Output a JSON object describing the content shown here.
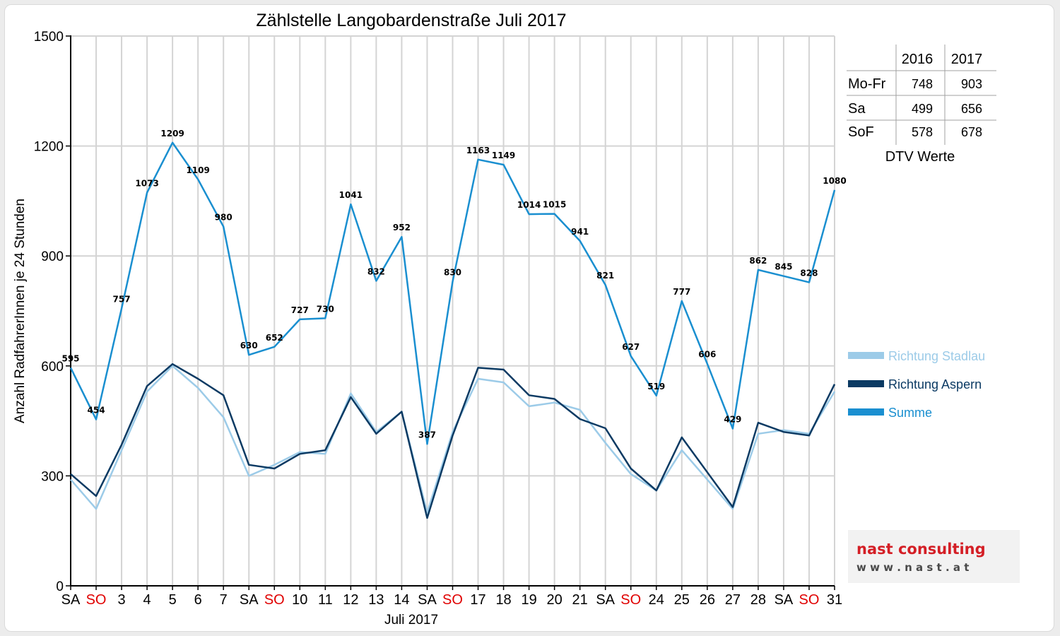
{
  "chart_data": {
    "type": "line",
    "title": "Zählstelle Langobardenstraße Juli 2017",
    "xlabel": "Juli 2017",
    "ylabel": "Anzahl RadfahrerInnen je 24 Stunden",
    "ylim": [
      0,
      1500
    ],
    "yticks": [
      0,
      300,
      600,
      900,
      1200,
      1500
    ],
    "grid": true,
    "legend_position": "right",
    "categories": [
      "SA",
      "SO",
      "3",
      "4",
      "5",
      "6",
      "7",
      "SA",
      "SO",
      "10",
      "11",
      "12",
      "13",
      "14",
      "SA",
      "SO",
      "17",
      "18",
      "19",
      "20",
      "21",
      "SA",
      "SO",
      "24",
      "25",
      "26",
      "27",
      "28",
      "SA",
      "SO",
      "31"
    ],
    "weekend_categories": [
      1,
      8,
      15,
      22,
      29
    ],
    "series": [
      {
        "name": "Richtung Stadlau",
        "color": "#9ccbe8",
        "values": [
          290,
          210,
          370,
          530,
          600,
          540,
          460,
          300,
          330,
          365,
          360,
          525,
          420,
          475,
          200,
          420,
          565,
          555,
          490,
          500,
          480,
          390,
          305,
          260,
          370,
          290,
          210,
          415,
          425,
          415,
          530
        ]
      },
      {
        "name": "Richtung Aspern",
        "color": "#0b3a63",
        "values": [
          305,
          245,
          385,
          545,
          605,
          565,
          520,
          330,
          320,
          360,
          370,
          515,
          415,
          475,
          185,
          410,
          595,
          590,
          520,
          510,
          455,
          430,
          320,
          260,
          405,
          310,
          215,
          445,
          420,
          410,
          550
        ]
      },
      {
        "name": "Summe",
        "color": "#1a8fd0",
        "values": [
          595,
          454,
          757,
          1073,
          1209,
          1109,
          980,
          630,
          652,
          727,
          730,
          1041,
          832,
          952,
          387,
          830,
          1163,
          1149,
          1014,
          1015,
          941,
          821,
          627,
          519,
          777,
          606,
          429,
          862,
          845,
          828,
          1080
        ]
      }
    ]
  },
  "dtv_table": {
    "columns": [
      "2016",
      "2017"
    ],
    "rows": [
      {
        "label": "Mo-Fr",
        "v2016": "748",
        "v2017": "903"
      },
      {
        "label": "Sa",
        "v2016": "499",
        "v2017": "656"
      },
      {
        "label": "SoF",
        "v2016": "578",
        "v2017": "678"
      }
    ],
    "caption": "DTV Werte"
  },
  "logo": {
    "name": "nast consulting",
    "url": "w w w . n a s t . a t"
  },
  "colors": {
    "weekend_label": "#e00000",
    "grid": "#d4d4d4",
    "logo_red": "#d41f26",
    "logo_gray": "#4a4a4a"
  }
}
